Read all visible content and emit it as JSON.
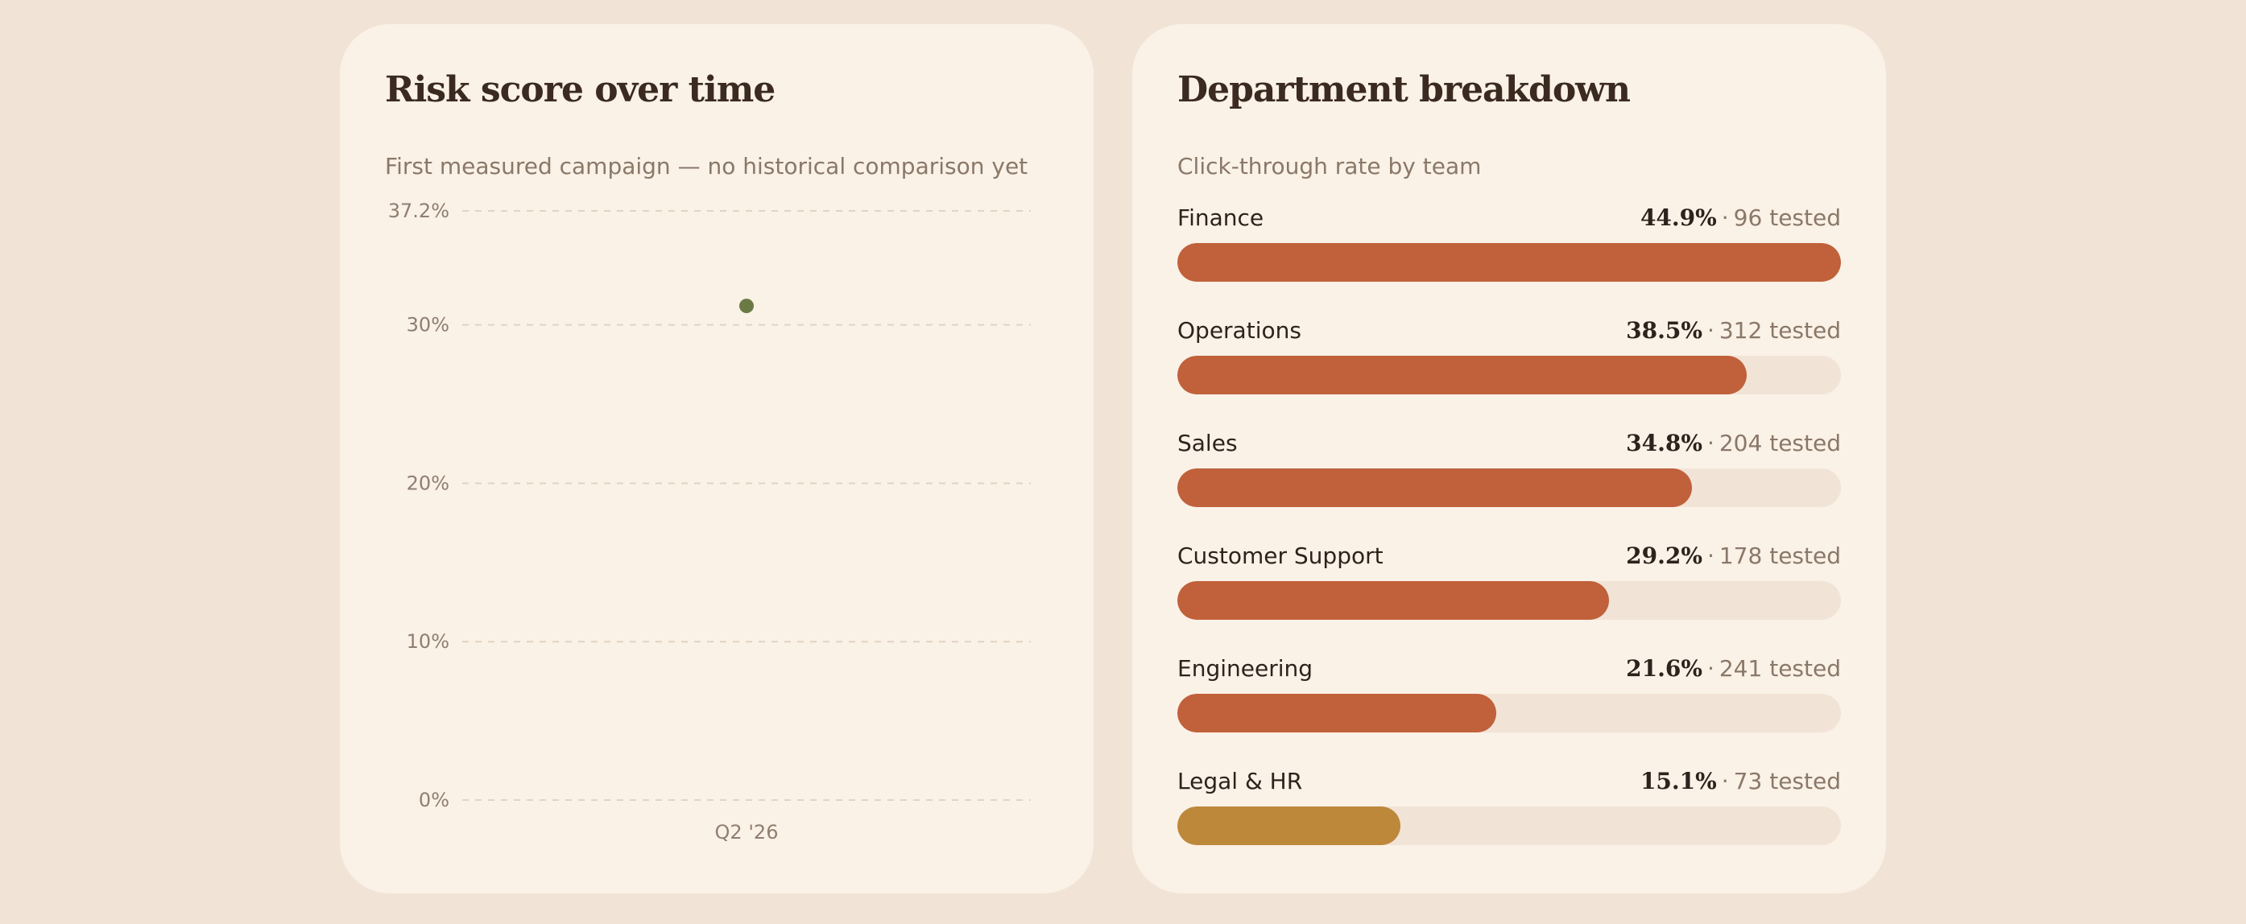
{
  "risk_card": {
    "title": "Risk score over time",
    "subtitle": "First measured campaign — no historical comparison yet"
  },
  "dept_card": {
    "title": "Department breakdown",
    "subtitle": "Click-through rate by team",
    "tested_suffix": "tested",
    "separator": "·"
  },
  "colors": {
    "background": "#f1e4d6",
    "card": "#faf1e7",
    "bar_high": "#c0613b",
    "bar_low": "#bd883a",
    "point": "#6b7a45",
    "track": "#f1e4d6"
  },
  "chart_data": [
    {
      "type": "scatter",
      "title": "Risk score over time",
      "subtitle": "First measured campaign — no historical comparison yet",
      "categories": [
        "Q2 '26"
      ],
      "values": [
        31.2
      ],
      "yticks": [
        "0%",
        "10%",
        "20%",
        "30%",
        "37.2%"
      ],
      "ytick_values": [
        0,
        10,
        20,
        30,
        37.2
      ],
      "ylim": [
        0,
        37.2
      ],
      "grid": true
    },
    {
      "type": "bar",
      "orientation": "horizontal",
      "title": "Department breakdown",
      "subtitle": "Click-through rate by team",
      "xlim": [
        0,
        44.9
      ],
      "items": [
        {
          "label": "Finance",
          "pct_label": "44.9%",
          "value": 44.9,
          "tested": 96
        },
        {
          "label": "Operations",
          "pct_label": "38.5%",
          "value": 38.5,
          "tested": 312
        },
        {
          "label": "Sales",
          "pct_label": "34.8%",
          "value": 34.8,
          "tested": 204
        },
        {
          "label": "Customer Support",
          "pct_label": "29.2%",
          "value": 29.2,
          "tested": 178
        },
        {
          "label": "Engineering",
          "pct_label": "21.6%",
          "value": 21.6,
          "tested": 241
        },
        {
          "label": "Legal & HR",
          "pct_label": "15.1%",
          "value": 15.1,
          "tested": 73
        }
      ]
    }
  ]
}
